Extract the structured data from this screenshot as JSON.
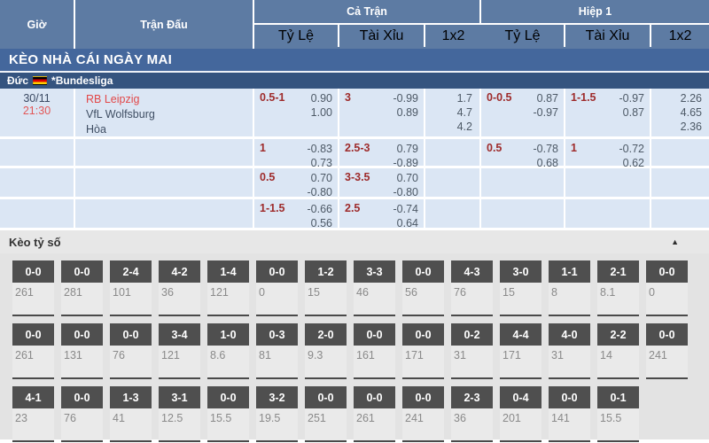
{
  "header": {
    "col_time": "Giờ",
    "col_match": "Trận Đấu",
    "group_full": "Cả Trận",
    "group_half": "Hiệp 1",
    "sub_hdp": "Tỷ Lệ",
    "sub_ou": "Tài Xỉu",
    "sub_1x2": "1x2"
  },
  "banner": {
    "title": "KÈO NHÀ CÁI NGÀY MAI"
  },
  "league": {
    "country": "Đức",
    "name": "*Bundesliga"
  },
  "match": {
    "date": "30/11",
    "time": "21:30",
    "home": "RB Leipzig",
    "away": "VfL Wolfsburg",
    "draw_label": "Hòa"
  },
  "colors": {
    "header_blue": "#5d7ba3",
    "banner_blue": "#44679c",
    "league_navy": "#35547f",
    "row_lightblue": "#dbe6f4",
    "handicap_red": "#9e2b2b",
    "team_red": "#e24848",
    "score_box_gray": "#4f4f4f"
  },
  "odds_rows": [
    {
      "ft_hdp": "0.5-1",
      "ft_hdp_o1": "0.90",
      "ft_hdp_o2": "1.00",
      "ft_ou": "3",
      "ft_ou_o1": "-0.99",
      "ft_ou_o2": "0.89",
      "ft_1": "1.7",
      "ft_x": "4.7",
      "ft_2": "4.2",
      "h1_hdp": "0-0.5",
      "h1_hdp_o1": "0.87",
      "h1_hdp_o2": "-0.97",
      "h1_ou": "1-1.5",
      "h1_ou_o1": "-0.97",
      "h1_ou_o2": "0.87",
      "h1_1": "2.26",
      "h1_x": "4.65",
      "h1_2": "2.36"
    },
    {
      "ft_hdp": "1",
      "ft_hdp_o1": "-0.83",
      "ft_hdp_o2": "0.73",
      "ft_ou": "2.5-3",
      "ft_ou_o1": "0.79",
      "ft_ou_o2": "-0.89",
      "h1_hdp": "0.5",
      "h1_hdp_o1": "-0.78",
      "h1_hdp_o2": "0.68",
      "h1_ou": "1",
      "h1_ou_o1": "-0.72",
      "h1_ou_o2": "0.62"
    },
    {
      "ft_hdp": "0.5",
      "ft_hdp_o1": "0.70",
      "ft_hdp_o2": "-0.80",
      "ft_ou": "3-3.5",
      "ft_ou_o1": "0.70",
      "ft_ou_o2": "-0.80"
    },
    {
      "ft_hdp": "1-1.5",
      "ft_hdp_o1": "-0.66",
      "ft_hdp_o2": "0.56",
      "ft_ou": "2.5",
      "ft_ou_o1": "-0.74",
      "ft_ou_o2": "0.64"
    }
  ],
  "scores": {
    "title": "Kèo tỷ số",
    "collapse_icon": "▲",
    "rows": [
      [
        {
          "s": "0-0",
          "v": "261"
        },
        {
          "s": "0-0",
          "v": "281"
        },
        {
          "s": "2-4",
          "v": "101"
        },
        {
          "s": "4-2",
          "v": "36"
        },
        {
          "s": "1-4",
          "v": "121"
        },
        {
          "s": "0-0",
          "v": "0"
        },
        {
          "s": "1-2",
          "v": "15"
        },
        {
          "s": "3-3",
          "v": "46"
        },
        {
          "s": "0-0",
          "v": "56"
        },
        {
          "s": "4-3",
          "v": "76"
        },
        {
          "s": "3-0",
          "v": "15"
        },
        {
          "s": "1-1",
          "v": "8"
        },
        {
          "s": "2-1",
          "v": "8.1"
        },
        {
          "s": "0-0",
          "v": "0"
        }
      ],
      [
        {
          "s": "0-0",
          "v": "261"
        },
        {
          "s": "0-0",
          "v": "131"
        },
        {
          "s": "0-0",
          "v": "76"
        },
        {
          "s": "3-4",
          "v": "121"
        },
        {
          "s": "1-0",
          "v": "8.6"
        },
        {
          "s": "0-3",
          "v": "81"
        },
        {
          "s": "2-0",
          "v": "9.3"
        },
        {
          "s": "0-0",
          "v": "161"
        },
        {
          "s": "0-0",
          "v": "171"
        },
        {
          "s": "0-2",
          "v": "31"
        },
        {
          "s": "4-4",
          "v": "171"
        },
        {
          "s": "4-0",
          "v": "31"
        },
        {
          "s": "2-2",
          "v": "14"
        },
        {
          "s": "0-0",
          "v": "241"
        }
      ],
      [
        {
          "s": "4-1",
          "v": "23"
        },
        {
          "s": "0-0",
          "v": "76"
        },
        {
          "s": "1-3",
          "v": "41"
        },
        {
          "s": "3-1",
          "v": "12.5"
        },
        {
          "s": "0-0",
          "v": "15.5"
        },
        {
          "s": "3-2",
          "v": "19.5"
        },
        {
          "s": "0-0",
          "v": "251"
        },
        {
          "s": "0-0",
          "v": "261"
        },
        {
          "s": "0-0",
          "v": "241"
        },
        {
          "s": "2-3",
          "v": "36"
        },
        {
          "s": "0-4",
          "v": "201"
        },
        {
          "s": "0-0",
          "v": "141"
        },
        {
          "s": "0-1",
          "v": "15.5"
        }
      ]
    ]
  }
}
